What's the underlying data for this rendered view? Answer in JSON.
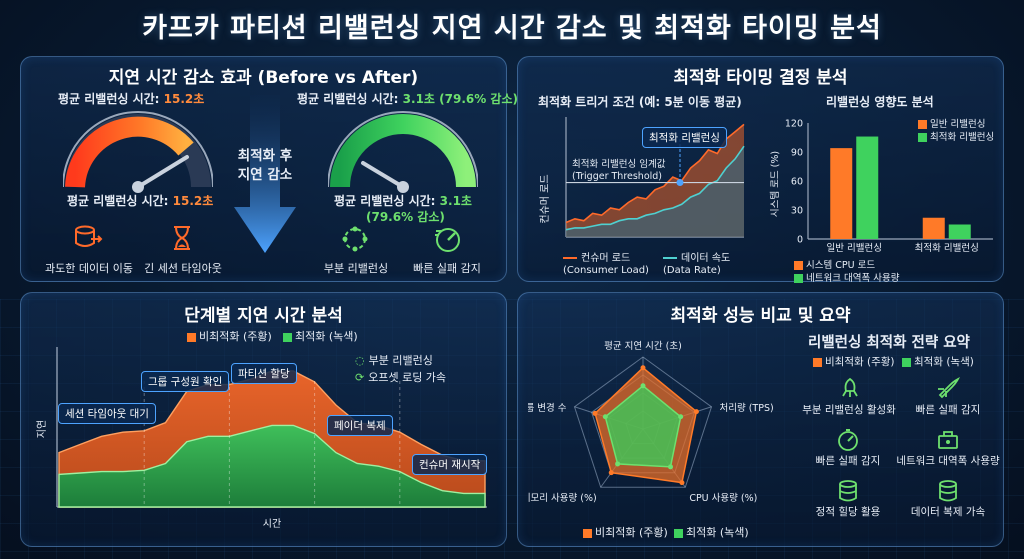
{
  "main_title": "카프카 파티션 리밸런싱 지연 시간 감소 및 최적화 타이밍 분석",
  "colors": {
    "orange": "#ff8a3c",
    "green": "#6ee06e",
    "blue": "#4da3ff",
    "red": "#ff5a3c"
  },
  "panel1": {
    "title": "지연 시간 감소 효과 (Before vs After)",
    "before_top_label": "평균 리밸런싱 시간: ",
    "before_top_value": "15.2초",
    "before_bottom_label": "평균 리밸런싱 시간: ",
    "before_bottom_value": "15.2초",
    "after_top_label": "평균 리밸런싱 시간: ",
    "after_top_value": "3.1초 (79.6% 감소)",
    "after_bottom_label": "평균 리밸런싱 시간: ",
    "after_bottom_value1": "3.1초",
    "after_bottom_value2": "(79.6% 감소)",
    "arrow_label_line1": "최적화 후",
    "arrow_label_line2": "지연 감소",
    "before_icons": [
      {
        "icon": "data-transfer-icon",
        "label": "과도한 데이터 이동"
      },
      {
        "icon": "hourglass-icon",
        "label": "긴 세션 타임아웃"
      }
    ],
    "after_icons": [
      {
        "icon": "partial-rebalance-icon",
        "label": "부분 리밸런싱"
      },
      {
        "icon": "speedometer-icon",
        "label": "빠른 실패 감지"
      }
    ]
  },
  "panel2": {
    "title": "최적화 타이밍 결정 분석",
    "left_subtitle": "최적화 트리거 조건 (예: 5분 이동 평균)",
    "y_axis_label": "컨슈머 로드",
    "threshold_label_line1": "최적화 리밸런싱 임계값",
    "threshold_label_line2": "(Trigger Threshold)",
    "optimal_label": "최적화 리밸런싱",
    "legend_consumer_line1": "컨슈머 로드",
    "legend_consumer_line2": "(Consumer Load)",
    "legend_rate_line1": "데이터 속도",
    "legend_rate_line2": "(Data Rate)",
    "right_subtitle": "리밸런싱 영향도 분석",
    "legend_normal": "일반 리밸런싱",
    "legend_optimized": "최적화 리밸런싱",
    "legend_cpu": "시스템 CPU 로드",
    "legend_net": "네트워크 대역폭 사용량"
  },
  "panel3": {
    "title": "단계별 지연 시간 분석",
    "legend_before": "비최적화 (주황)",
    "legend_after": "최적화 (녹색)",
    "legend_partial": "부분 리밸런싱",
    "legend_offset": "오프셋 로딩 가속",
    "x_axis_label": "시간",
    "y_axis_label": "지연",
    "stages": [
      "세션 타임아웃 대기",
      "그룹 구성원 확인",
      "파티션 할당",
      "페이더 복제",
      "컨슈머 재시작"
    ]
  },
  "panel4": {
    "title": "최적화 성능 비교 및 요약",
    "legend_before": "비최적화 (주황)",
    "legend_after": "최적화 (녹색)",
    "summary_title": "리밸런싱 최적화 전략 요약",
    "summary_legend_before": "비최적화 (주황)",
    "summary_legend_after": "최적화 (녹색)",
    "strategies": [
      {
        "icon": "rocket-icon",
        "label": "부분 리밸런싱 활성화"
      },
      {
        "icon": "rocket-icon",
        "label": "빠른 실패 감지"
      },
      {
        "icon": "stopwatch-icon",
        "label": "빠른 실패 감지"
      },
      {
        "icon": "network-icon",
        "label": "네트워크 대역폭 사용량"
      },
      {
        "icon": "database-icon",
        "label": "정적 힐당 활용"
      },
      {
        "icon": "database-icon",
        "label": "데이터 복제 가속"
      }
    ]
  },
  "chart_data": [
    {
      "type": "gauge",
      "series": [
        {
          "name": "비최적화",
          "value": 15.2,
          "unit": "초"
        },
        {
          "name": "최적화",
          "value": 3.1,
          "unit": "초"
        }
      ]
    },
    {
      "type": "line",
      "title": "최적화 트리거 조건 (예: 5분 이동 평균)",
      "ylabel": "컨슈머 로드",
      "x": [
        0,
        1,
        2,
        3,
        4,
        5,
        6,
        7,
        8,
        9,
        10,
        11,
        12,
        13,
        14,
        15,
        16,
        17,
        18,
        19,
        20
      ],
      "series": [
        {
          "name": "컨슈머 로드 (Consumer Load)",
          "values": [
            8,
            10,
            9,
            13,
            12,
            16,
            15,
            19,
            22,
            21,
            26,
            28,
            33,
            31,
            38,
            42,
            48,
            46,
            54,
            58,
            62
          ]
        },
        {
          "name": "데이터 속도 (Data Rate)",
          "values": [
            4,
            5,
            5,
            6,
            7,
            7,
            9,
            10,
            10,
            12,
            13,
            15,
            16,
            18,
            22,
            24,
            29,
            31,
            38,
            43,
            50
          ]
        }
      ],
      "threshold": 30
    },
    {
      "type": "bar",
      "title": "리밸런싱 영향도 분석",
      "categories": [
        "일반 리밸런싱",
        "최적화 리밸런싱"
      ],
      "series": [
        {
          "name": "시스템 CPU 로드",
          "values": [
            94,
            22
          ]
        },
        {
          "name": "네트워크 대역폭 사용량",
          "values": [
            106,
            15
          ]
        }
      ],
      "ylim": [
        0,
        120
      ],
      "yticks": [
        0,
        30,
        60,
        90,
        120
      ],
      "ylabel": "시스템 로드 (%)"
    },
    {
      "type": "area",
      "title": "단계별 지연 시간 분석",
      "xlabel": "시간",
      "ylabel": "지연",
      "x": [
        0,
        1,
        2,
        3,
        4,
        5,
        6,
        7,
        8,
        9,
        10,
        11,
        12,
        13,
        14,
        15,
        16,
        17,
        18,
        19,
        20
      ],
      "series": [
        {
          "name": "비최적화 (주황)",
          "values": [
            40,
            46,
            52,
            55,
            56,
            62,
            85,
            90,
            90,
            94,
            100,
            100,
            92,
            75,
            62,
            60,
            55,
            46,
            38,
            34,
            34
          ]
        },
        {
          "name": "최적화 (녹색)",
          "values": [
            24,
            25,
            26,
            26,
            27,
            32,
            48,
            52,
            52,
            56,
            60,
            60,
            54,
            40,
            32,
            30,
            26,
            18,
            12,
            10,
            10
          ]
        }
      ]
    },
    {
      "type": "radar",
      "axes": [
        "평균 지연 시간 (초)",
        "처리량 (TPS)",
        "CPU 사용량 (%)",
        "메모리 사용량 (%)",
        "그룹 변경 수"
      ],
      "series": [
        {
          "name": "비최적화 (주황)",
          "values": [
            0.85,
            0.78,
            0.92,
            0.75,
            0.7
          ]
        },
        {
          "name": "최적화 (녹색)",
          "values": [
            0.6,
            0.55,
            0.65,
            0.6,
            0.55
          ]
        }
      ]
    }
  ]
}
